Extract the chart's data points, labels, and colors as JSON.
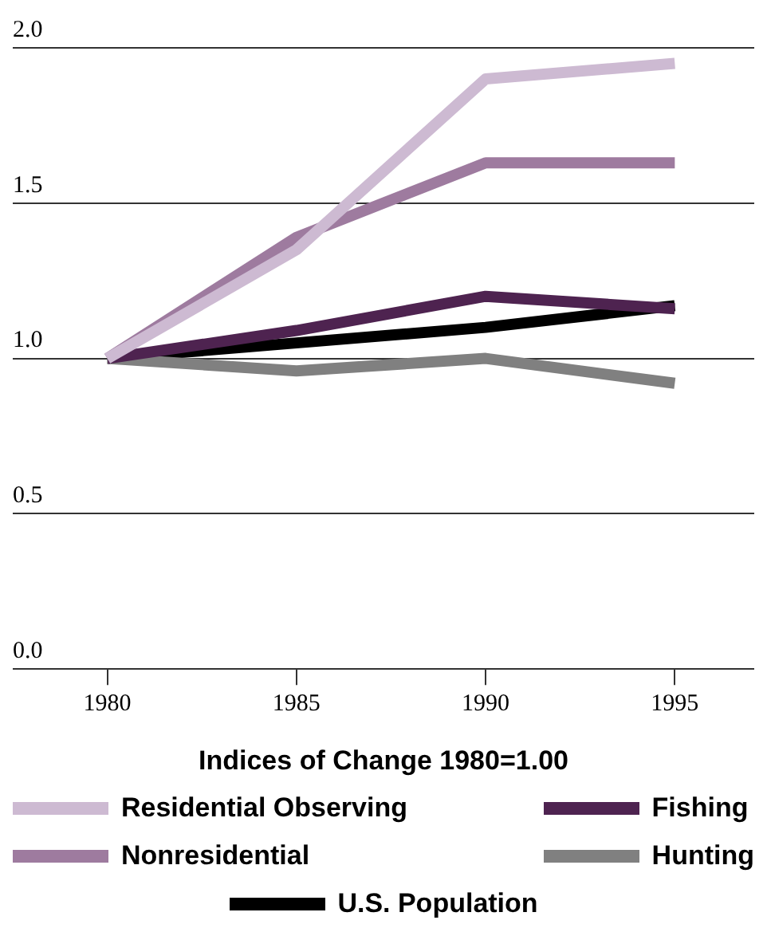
{
  "chart_data": {
    "type": "line",
    "xlabel": "Indices of Change 1980=1.00",
    "x": [
      1980,
      1985,
      1990,
      1995
    ],
    "series": [
      {
        "name": "Residential Observing",
        "color": "#cdbad2",
        "values": [
          1.0,
          1.35,
          1.9,
          1.95
        ]
      },
      {
        "name": "Nonresidential",
        "color": "#9e7b9f",
        "values": [
          1.0,
          1.39,
          1.63,
          1.63
        ]
      },
      {
        "name": "Fishing",
        "color": "#4e2350",
        "values": [
          1.0,
          1.09,
          1.2,
          1.16
        ]
      },
      {
        "name": "Hunting",
        "color": "#808080",
        "values": [
          1.0,
          0.96,
          1.0,
          0.92
        ]
      },
      {
        "name": "U.S. Population",
        "color": "#000000",
        "values": [
          1.0,
          1.05,
          1.1,
          1.17
        ]
      }
    ],
    "xlim": [
      1977.5,
      1997.1
    ],
    "xticks": [
      1980,
      1985,
      1990,
      1995
    ],
    "ylim": [
      0,
      2
    ],
    "yticks": [
      {
        "value": 0,
        "label": "0.0"
      },
      {
        "value": 0.5,
        "label": "0.5"
      },
      {
        "value": 1,
        "label": "1.0"
      },
      {
        "value": 1.5,
        "label": "1.5"
      },
      {
        "value": 2,
        "label": "2.0"
      }
    ],
    "grid": "y",
    "legend": "bottom",
    "marker": "none",
    "line_style": "solid"
  }
}
